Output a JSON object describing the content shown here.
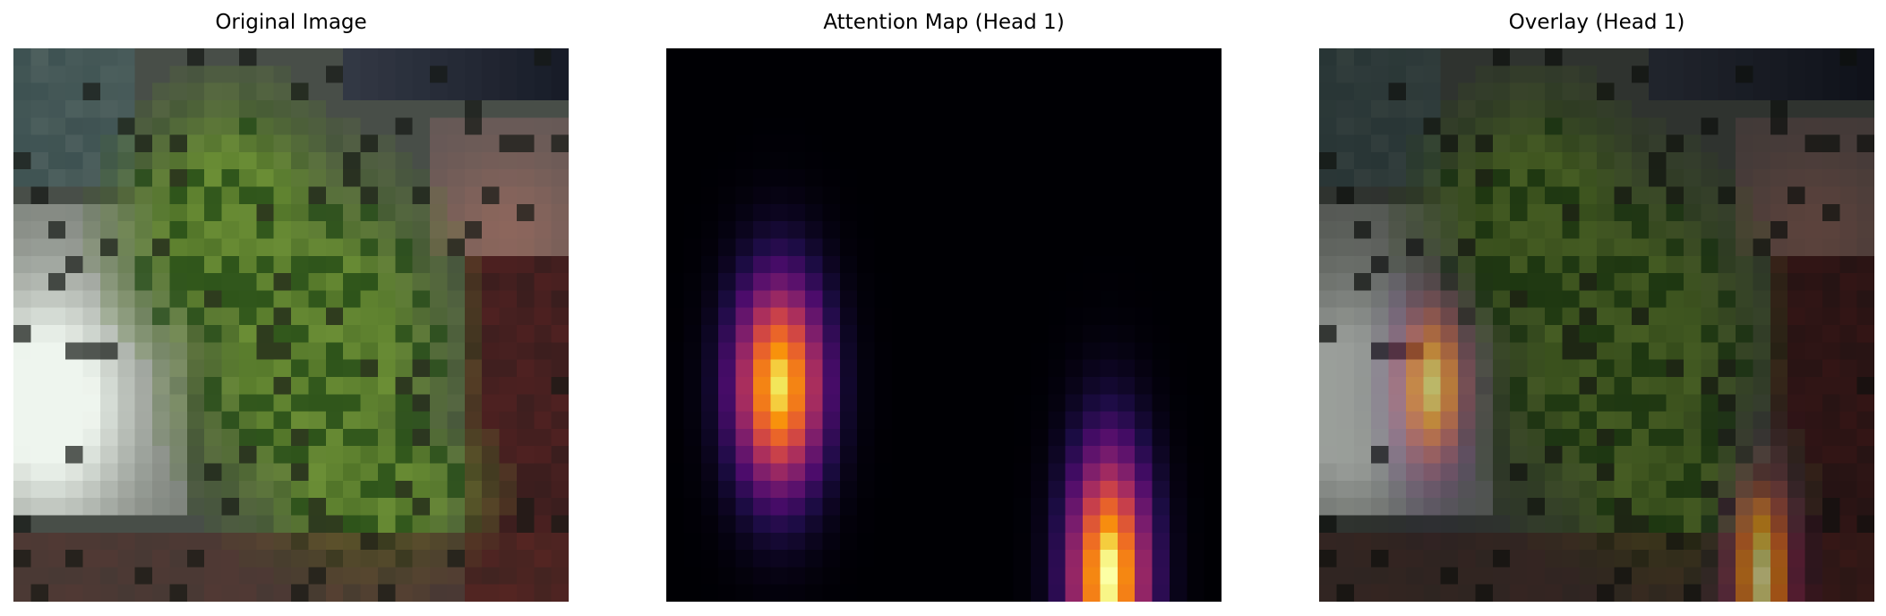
{
  "panels": [
    {
      "title": "Original Image",
      "image": "original-pixelated-photo"
    },
    {
      "title": "Attention Map (Head 1)",
      "image": "attention-heatmap"
    },
    {
      "title": "Overlay (Head 1)",
      "image": "attention-overlay"
    }
  ],
  "colormap": "inferno",
  "attention_peaks": [
    {
      "row": 19,
      "col": 6,
      "intensity": 0.95
    },
    {
      "row": 29,
      "col": 25,
      "intensity": 1.0
    }
  ],
  "grid": {
    "rows": 32,
    "cols": 32
  }
}
